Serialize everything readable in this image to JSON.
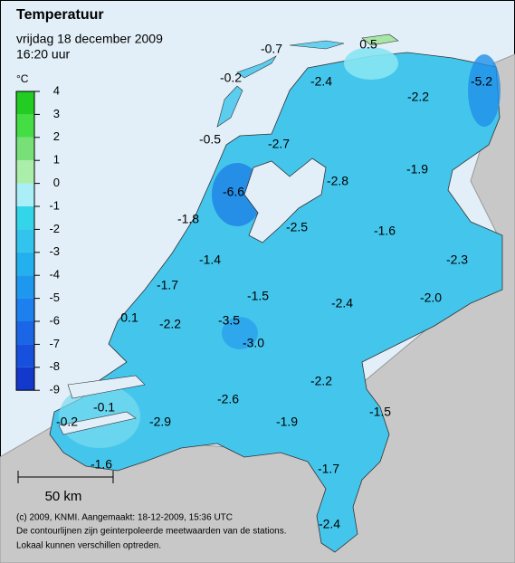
{
  "header": {
    "title": "Temperatuur",
    "date": "vrijdag 18 december 2009",
    "time": "16:20 uur"
  },
  "legend": {
    "unit": "°C",
    "ticks": [
      4,
      3,
      2,
      1,
      0,
      -1,
      -2,
      -3,
      -4,
      -5,
      -6,
      -7,
      -8,
      -9
    ],
    "colors": [
      "#22cc22",
      "#44dd44",
      "#77e077",
      "#aaeeaa",
      "#aaeef8",
      "#33d6e8",
      "#33c4ee",
      "#22b0ee",
      "#1e98ee",
      "#1c80ee",
      "#1a66e6",
      "#1750dd",
      "#1238cc"
    ]
  },
  "stations": [
    "-0.7",
    "0.5",
    "-0.2",
    "-2.4",
    "-2.2",
    "-5.2",
    "-0.5",
    "-2.7",
    "-2.8",
    "-1.9",
    "-6.6",
    "-1.8",
    "-2.5",
    "-1.6",
    "-2.3",
    "-1.4",
    "-1.7",
    "-1.5",
    "-2.4",
    "-2.0",
    "0.1",
    "-2.2",
    "-3.5",
    "-3.0",
    "-2.2",
    "-2.6",
    "-0.1",
    "-1.5",
    "-0.2",
    "-2.9",
    "-1.9",
    "-1.6",
    "-1.7",
    "-2.4"
  ],
  "scale": "50 km",
  "footer": [
    "(c) 2009, KNMI. Aangemaakt: 18-12-2009, 15:36 UTC",
    "De contourlijnen zijn geinterpoleerde meetwaarden van de stations.",
    "Lokaal kunnen verschillen optreden."
  ]
}
